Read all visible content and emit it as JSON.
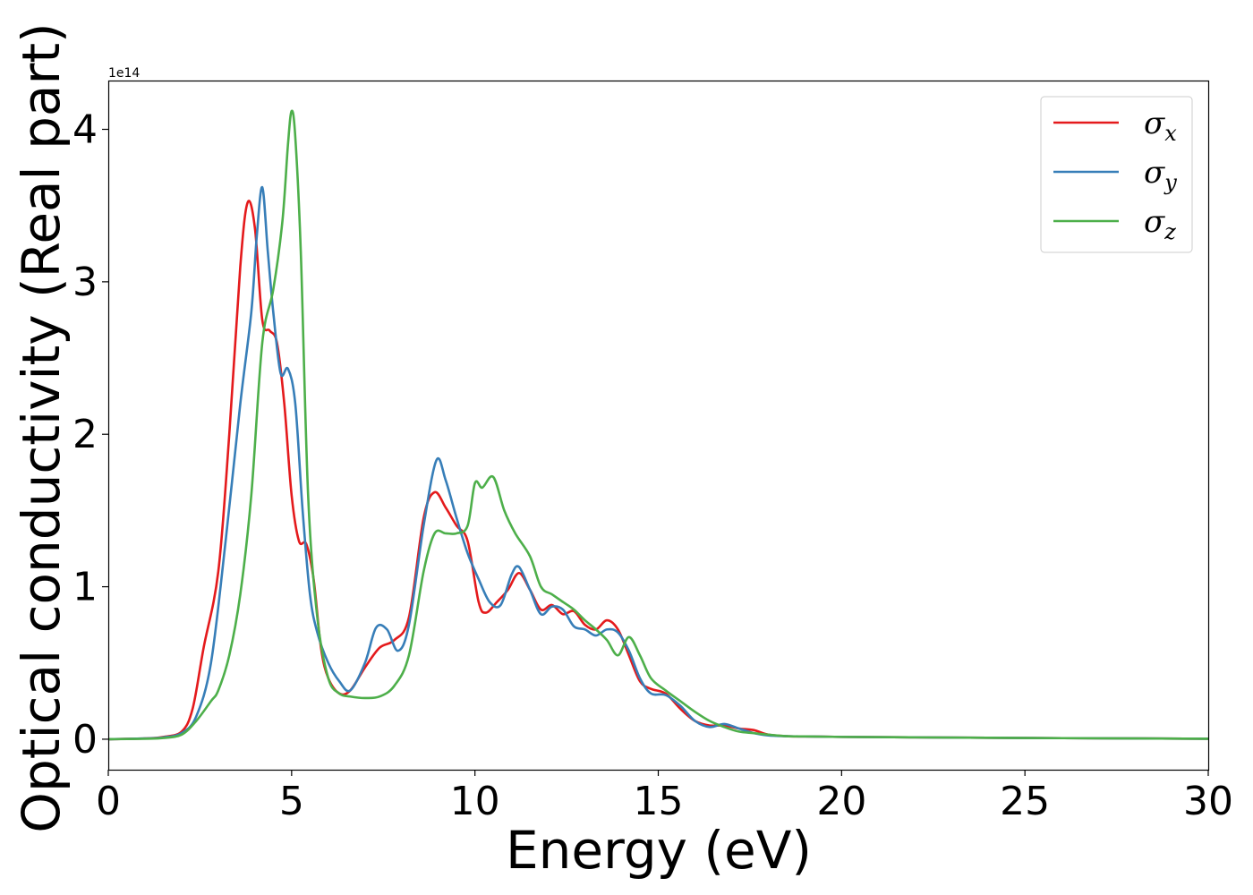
{
  "chart_data": {
    "type": "line",
    "xlabel": "Energy (eV)",
    "ylabel": "Optical conductivity (Real part)",
    "offset_text": "1e14",
    "xlim": [
      0,
      30
    ],
    "ylim": [
      -0.2,
      4.32
    ],
    "y_scale_factor": 100000000000000.0,
    "xticks": [
      0,
      5,
      10,
      15,
      20,
      25,
      30
    ],
    "yticks": [
      0,
      1,
      2,
      3,
      4
    ],
    "xtick_labels": [
      "0",
      "5",
      "10",
      "15",
      "20",
      "25",
      "30"
    ],
    "ytick_labels": [
      "0",
      "1",
      "2",
      "3",
      "4"
    ],
    "grid": false,
    "legend_position": "top-right",
    "series": [
      {
        "name": "σx",
        "symbol": "σ",
        "subscript": "x",
        "color": "#e41a1c",
        "x": [
          0,
          1,
          1.5,
          2.0,
          2.3,
          2.6,
          3.0,
          3.3,
          3.6,
          3.8,
          4.0,
          4.2,
          4.4,
          4.6,
          4.8,
          5.0,
          5.2,
          5.4,
          5.6,
          5.8,
          6.0,
          6.3,
          6.6,
          7.0,
          7.4,
          7.8,
          8.2,
          8.6,
          8.9,
          9.2,
          9.5,
          9.8,
          10.1,
          10.3,
          10.6,
          10.9,
          11.2,
          11.5,
          11.8,
          12.1,
          12.4,
          12.7,
          13.0,
          13.3,
          13.6,
          13.9,
          14.2,
          14.5,
          14.8,
          15.2,
          15.6,
          16.0,
          16.4,
          16.8,
          17.2,
          17.6,
          18.0,
          18.5,
          19,
          20,
          22,
          25,
          28,
          30
        ],
        "y": [
          0,
          0.005,
          0.015,
          0.05,
          0.2,
          0.6,
          1.1,
          2.0,
          3.1,
          3.52,
          3.35,
          2.75,
          2.68,
          2.6,
          2.2,
          1.6,
          1.3,
          1.28,
          1.05,
          0.6,
          0.4,
          0.3,
          0.32,
          0.47,
          0.6,
          0.65,
          0.8,
          1.45,
          1.62,
          1.52,
          1.4,
          1.3,
          0.9,
          0.83,
          0.9,
          0.98,
          1.09,
          0.98,
          0.85,
          0.88,
          0.82,
          0.84,
          0.75,
          0.72,
          0.78,
          0.72,
          0.55,
          0.38,
          0.33,
          0.3,
          0.2,
          0.12,
          0.09,
          0.09,
          0.07,
          0.06,
          0.03,
          0.02,
          0.018,
          0.015,
          0.012,
          0.008,
          0.005,
          0.003
        ]
      },
      {
        "name": "σy",
        "symbol": "σ",
        "subscript": "y",
        "color": "#377eb8",
        "x": [
          0,
          1,
          1.5,
          2.0,
          2.4,
          2.8,
          3.2,
          3.6,
          3.9,
          4.05,
          4.2,
          4.35,
          4.5,
          4.7,
          4.9,
          5.1,
          5.3,
          5.5,
          5.7,
          6.0,
          6.3,
          6.6,
          7.0,
          7.3,
          7.6,
          7.9,
          8.2,
          8.6,
          8.95,
          9.2,
          9.5,
          9.8,
          10.1,
          10.4,
          10.7,
          11.0,
          11.2,
          11.5,
          11.8,
          12.1,
          12.4,
          12.7,
          13.0,
          13.3,
          13.6,
          13.9,
          14.2,
          14.5,
          14.8,
          15.2,
          15.6,
          16.0,
          16.4,
          16.8,
          17.2,
          17.6,
          18.0,
          18.5,
          19,
          20,
          22,
          25,
          28,
          30
        ],
        "y": [
          0,
          0.005,
          0.012,
          0.04,
          0.15,
          0.5,
          1.3,
          2.2,
          2.8,
          3.3,
          3.62,
          3.2,
          2.8,
          2.4,
          2.43,
          2.2,
          1.5,
          0.95,
          0.7,
          0.5,
          0.38,
          0.32,
          0.5,
          0.73,
          0.72,
          0.58,
          0.75,
          1.4,
          1.83,
          1.7,
          1.45,
          1.22,
          1.05,
          0.9,
          0.88,
          1.08,
          1.13,
          0.98,
          0.82,
          0.87,
          0.85,
          0.74,
          0.72,
          0.68,
          0.72,
          0.7,
          0.58,
          0.4,
          0.3,
          0.29,
          0.22,
          0.12,
          0.08,
          0.1,
          0.07,
          0.04,
          0.025,
          0.02,
          0.018,
          0.015,
          0.012,
          0.008,
          0.005,
          0.003
        ]
      },
      {
        "name": "σz",
        "symbol": "σ",
        "subscript": "z",
        "color": "#4daf4a",
        "x": [
          0,
          1,
          1.5,
          2.0,
          2.4,
          2.8,
          3.0,
          3.3,
          3.6,
          3.9,
          4.2,
          4.5,
          4.75,
          4.9,
          5.0,
          5.1,
          5.25,
          5.45,
          5.7,
          6.0,
          6.3,
          6.6,
          7.0,
          7.4,
          7.8,
          8.2,
          8.6,
          8.9,
          9.2,
          9.5,
          9.8,
          10.0,
          10.2,
          10.5,
          10.8,
          11.1,
          11.5,
          11.8,
          12.1,
          12.4,
          12.7,
          13.0,
          13.3,
          13.6,
          13.9,
          14.2,
          14.5,
          14.8,
          15.2,
          15.6,
          16.0,
          16.4,
          16.8,
          17.2,
          17.6,
          18.0,
          18.5,
          19,
          20,
          22,
          25,
          28,
          30
        ],
        "y": [
          0,
          0.003,
          0.008,
          0.03,
          0.12,
          0.25,
          0.32,
          0.55,
          0.95,
          1.6,
          2.6,
          2.95,
          3.4,
          3.9,
          4.12,
          3.95,
          3.2,
          1.6,
          0.8,
          0.4,
          0.3,
          0.28,
          0.27,
          0.28,
          0.35,
          0.55,
          1.1,
          1.35,
          1.35,
          1.35,
          1.4,
          1.68,
          1.65,
          1.72,
          1.5,
          1.35,
          1.2,
          1.0,
          0.95,
          0.9,
          0.85,
          0.78,
          0.72,
          0.65,
          0.55,
          0.67,
          0.55,
          0.4,
          0.32,
          0.25,
          0.18,
          0.12,
          0.08,
          0.05,
          0.04,
          0.03,
          0.02,
          0.018,
          0.015,
          0.012,
          0.008,
          0.005,
          0.003
        ]
      }
    ]
  }
}
